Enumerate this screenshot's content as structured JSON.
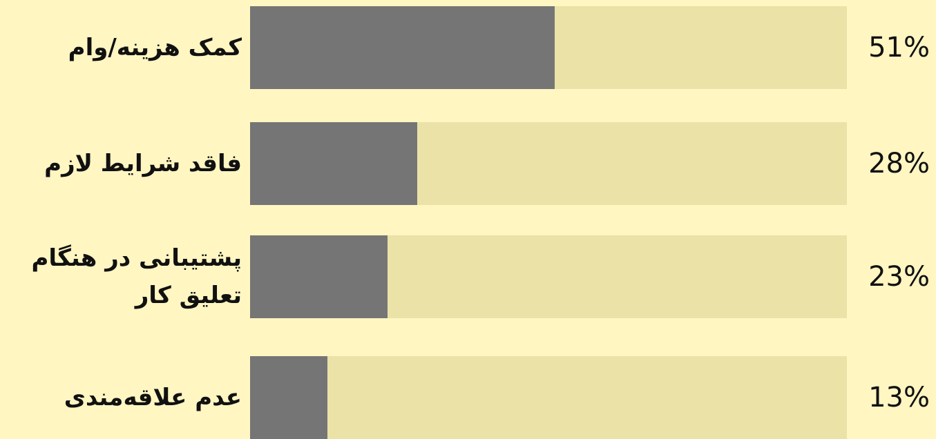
{
  "chart_data": {
    "type": "bar",
    "orientation": "horizontal",
    "categories": [
      "کمک هزینه/وام",
      "فاقد شرایط لازم",
      "پشتیبانی در هنگام تعلیق کار",
      "عدم علاقه‌مندی"
    ],
    "values": [
      51,
      28,
      23,
      13
    ],
    "value_labels": [
      "51%",
      "28%",
      "23%",
      "13%"
    ],
    "xlim": [
      0,
      100
    ],
    "color": "#757575",
    "track_color": "#ebe2a8",
    "background": "#fff6c2"
  }
}
